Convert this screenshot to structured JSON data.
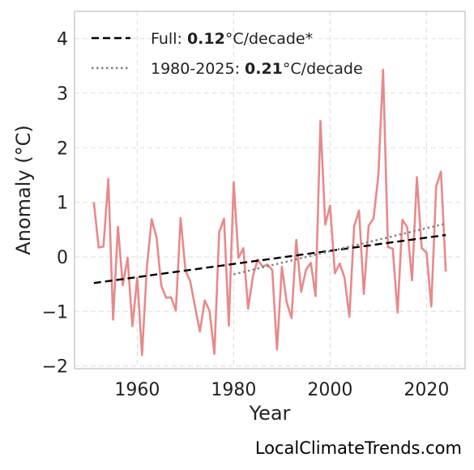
{
  "chart_data": {
    "type": "line",
    "title": "",
    "xlabel": "Year",
    "ylabel": "Anomaly (°C)",
    "xlim": [
      1947,
      2028
    ],
    "ylim": [
      -2.05,
      4.5
    ],
    "x_ticks": [
      1960,
      1980,
      2000,
      2020
    ],
    "y_ticks": [
      -2,
      -1,
      0,
      1,
      2,
      3,
      4
    ],
    "y_tick_labels": [
      "−2",
      "−1",
      "0",
      "1",
      "2",
      "3",
      "4"
    ],
    "grid": true,
    "legend_position": "top-left",
    "series": [
      {
        "type": "line",
        "color": "#e8898b",
        "x": [
          1951,
          1952,
          1953,
          1954,
          1955,
          1956,
          1957,
          1958,
          1959,
          1960,
          1961,
          1962,
          1963,
          1964,
          1965,
          1966,
          1967,
          1968,
          1969,
          1970,
          1971,
          1972,
          1973,
          1974,
          1975,
          1976,
          1977,
          1978,
          1979,
          1980,
          1981,
          1982,
          1983,
          1984,
          1985,
          1986,
          1987,
          1988,
          1989,
          1990,
          1991,
          1992,
          1993,
          1994,
          1995,
          1996,
          1997,
          1998,
          1999,
          2000,
          2001,
          2002,
          2003,
          2004,
          2005,
          2006,
          2007,
          2008,
          2009,
          2010,
          2011,
          2012,
          2013,
          2014,
          2015,
          2016,
          2017,
          2018,
          2019,
          2020,
          2021,
          2022,
          2023,
          2024
        ],
        "y": [
          1.0,
          0.17,
          0.19,
          1.43,
          -1.15,
          0.55,
          -0.52,
          -0.02,
          -1.27,
          -0.38,
          -1.8,
          -0.18,
          0.69,
          0.36,
          -0.53,
          -0.75,
          -0.74,
          -0.98,
          0.71,
          -0.25,
          -0.45,
          -0.92,
          -1.37,
          -0.8,
          -0.99,
          -1.78,
          0.45,
          0.7,
          -1.26,
          1.37,
          -0.02,
          0.16,
          -0.95,
          -0.35,
          -0.05,
          -0.18,
          -0.14,
          -0.24,
          -1.7,
          -0.18,
          -0.83,
          -1.12,
          0.31,
          -0.64,
          -0.24,
          -0.11,
          -0.72,
          2.49,
          0.59,
          0.94,
          -0.3,
          -0.12,
          -0.38,
          -1.1,
          0.56,
          0.85,
          -0.68,
          0.57,
          0.7,
          1.48,
          3.43,
          0.18,
          0.15,
          -1.02,
          0.68,
          0.54,
          -0.43,
          1.46,
          0.16,
          0.08,
          -0.91,
          1.29,
          1.56,
          -0.27
        ]
      },
      {
        "name": "Full: 0.12°C/decade*",
        "type": "trend",
        "style": "dashed",
        "color": "#000000",
        "x": [
          1951,
          2024
        ],
        "y": [
          -0.48,
          0.4
        ]
      },
      {
        "name": "1980-2025: 0.21°C/decade",
        "type": "trend",
        "style": "dotted",
        "color": "#808080",
        "x": [
          1980,
          2024
        ],
        "y": [
          -0.32,
          0.61
        ]
      }
    ],
    "legend": [
      {
        "prefix": "Full: ",
        "value": "0.12",
        "suffix": "°C/decade*"
      },
      {
        "prefix": "1980-2025: ",
        "value": "0.21",
        "suffix": "°C/decade"
      }
    ],
    "watermark": "LocalClimateTrends.com"
  }
}
